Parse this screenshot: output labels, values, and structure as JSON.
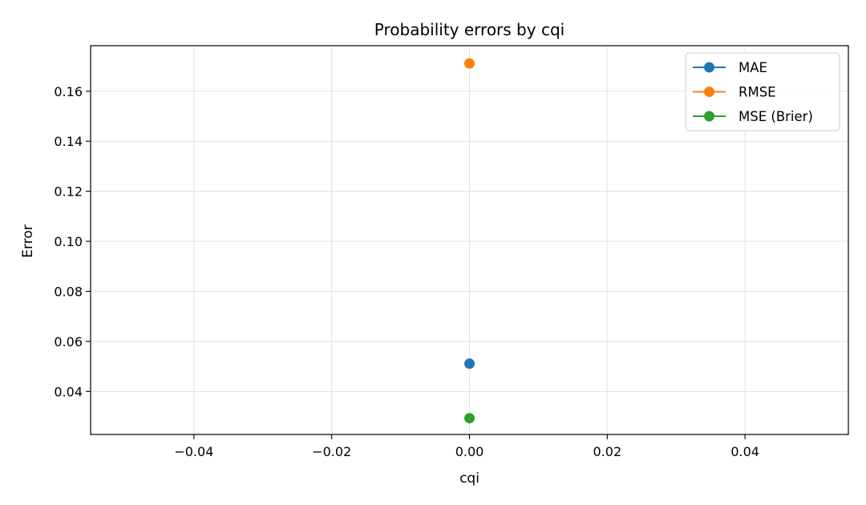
{
  "chart_data": {
    "type": "line",
    "title": "Probability errors by cqi",
    "xlabel": "cqi",
    "ylabel": "Error",
    "xlim": [
      -0.055,
      0.055
    ],
    "ylim": [
      0.0228,
      0.1782
    ],
    "x_ticks": [
      -0.04,
      -0.02,
      0.0,
      0.02,
      0.04
    ],
    "x_tick_labels": [
      "−0.04",
      "−0.02",
      "0.00",
      "0.02",
      "0.04"
    ],
    "y_ticks": [
      0.04,
      0.06,
      0.08,
      0.1,
      0.12,
      0.14,
      0.16
    ],
    "y_tick_labels": [
      "0.04",
      "0.06",
      "0.08",
      "0.10",
      "0.12",
      "0.14",
      "0.16"
    ],
    "grid": true,
    "legend_position": "top-right",
    "series": [
      {
        "name": "MAE",
        "color": "#1f77b4",
        "x": [
          0
        ],
        "y": [
          0.0511
        ]
      },
      {
        "name": "RMSE",
        "color": "#ff7f0e",
        "x": [
          0
        ],
        "y": [
          0.1711
        ]
      },
      {
        "name": "MSE (Brier)",
        "color": "#2ca02c",
        "x": [
          0
        ],
        "y": [
          0.0293
        ]
      }
    ]
  }
}
